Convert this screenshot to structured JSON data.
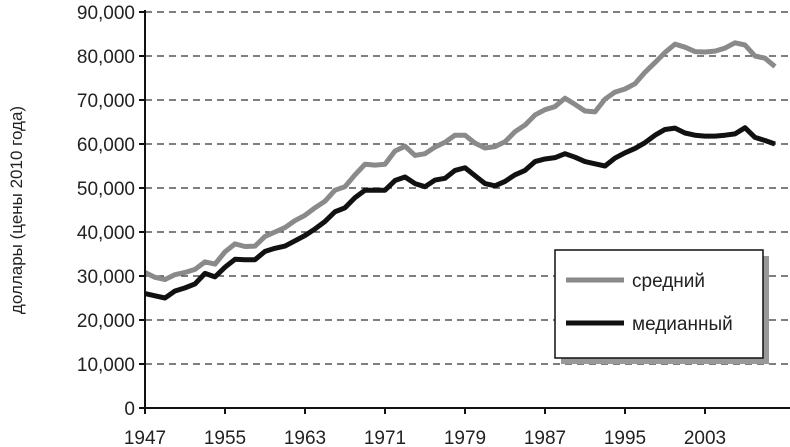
{
  "chart_data": {
    "type": "line",
    "title": "",
    "xlabel": "",
    "ylabel": "доллары (цены 2010 года)",
    "xlim": [
      1947,
      2011
    ],
    "ylim": [
      0,
      90000
    ],
    "grid": true,
    "legend_position": "bottom-right",
    "x_ticks": [
      "1947",
      "1955",
      "1963",
      "1971",
      "1979",
      "1987",
      "1995",
      "2003"
    ],
    "y_ticks": [
      "0",
      "10,000",
      "20,000",
      "30,000",
      "40,000",
      "50,000",
      "60,000",
      "70,000",
      "80,000",
      "90,000"
    ],
    "x": [
      1947,
      1948,
      1949,
      1950,
      1951,
      1952,
      1953,
      1954,
      1955,
      1956,
      1957,
      1958,
      1959,
      1960,
      1961,
      1962,
      1963,
      1964,
      1965,
      1966,
      1967,
      1968,
      1969,
      1970,
      1971,
      1972,
      1973,
      1974,
      1975,
      1976,
      1977,
      1978,
      1979,
      1980,
      1981,
      1982,
      1983,
      1984,
      1985,
      1986,
      1987,
      1988,
      1989,
      1990,
      1991,
      1992,
      1993,
      1994,
      1995,
      1996,
      1997,
      1998,
      1999,
      2000,
      2001,
      2002,
      2003,
      2004,
      2005,
      2006,
      2007,
      2008,
      2009,
      2010
    ],
    "series": [
      {
        "name": "средний",
        "color": "#8a8a8a",
        "values": [
          30800,
          29700,
          29200,
          30300,
          30800,
          31500,
          33200,
          32700,
          35500,
          37300,
          36700,
          36800,
          39000,
          40000,
          41000,
          42600,
          43800,
          45500,
          47000,
          49500,
          50300,
          53000,
          55400,
          55200,
          55400,
          58400,
          59500,
          57400,
          57800,
          59300,
          60400,
          62000,
          62000,
          60200,
          59100,
          59400,
          60500,
          62800,
          64300,
          66600,
          67800,
          68500,
          70400,
          69000,
          67500,
          67300,
          70200,
          71800,
          72500,
          73700,
          76300,
          78500,
          80800,
          82700,
          82000,
          81000,
          80900,
          81100,
          81800,
          83000,
          82500,
          80000,
          79500,
          77600
        ]
      },
      {
        "name": "медианный",
        "color": "#111111",
        "values": [
          26000,
          25500,
          25000,
          26600,
          27300,
          28200,
          30600,
          29800,
          32000,
          33800,
          33700,
          33700,
          35600,
          36300,
          36800,
          38000,
          39200,
          40700,
          42400,
          44600,
          45500,
          47800,
          49500,
          49500,
          49500,
          51700,
          52500,
          51000,
          50300,
          51800,
          52200,
          54000,
          54600,
          52800,
          51000,
          50500,
          51500,
          53000,
          54000,
          56000,
          56600,
          56900,
          57800,
          57000,
          56000,
          55500,
          55000,
          56800,
          58000,
          59000,
          60300,
          62000,
          63300,
          63600,
          62500,
          62000,
          61800,
          61800,
          62000,
          62300,
          63700,
          61500,
          60800,
          60000
        ]
      }
    ]
  }
}
